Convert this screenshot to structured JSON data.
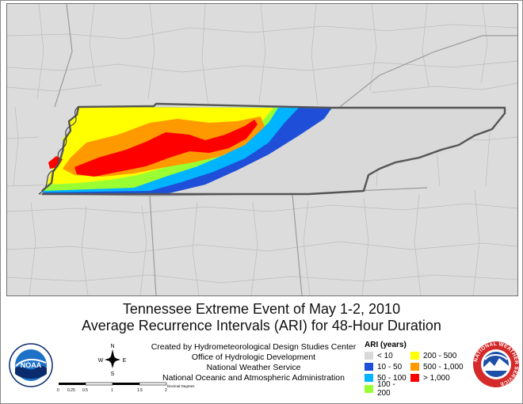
{
  "title": {
    "line1": "Tennessee Extreme Event of May 1-2, 2010",
    "line2": "Average Recurrence Intervals (ARI) for 48-Hour Duration"
  },
  "credits": [
    "Created by Hydrometeorological Design Studies Center",
    "Office of Hydrologic Development",
    "National Weather Service",
    "National Oceanic and Atmospheric Administration"
  ],
  "legend": {
    "title": "ARI (years)",
    "items": [
      {
        "label": "< 10",
        "color": "#d9d9d9"
      },
      {
        "label": "200 - 500",
        "color": "#ffff00"
      },
      {
        "label": "10 - 50",
        "color": "#1f4fd8"
      },
      {
        "label": "500 - 1,000",
        "color": "#ff9900"
      },
      {
        "label": "50 - 100",
        "color": "#00b4ff"
      },
      {
        "label": "> 1,000",
        "color": "#ff0000"
      },
      {
        "label": "100 - 200",
        "color": "#99ff33"
      }
    ]
  },
  "north_arrow": {
    "n": "N",
    "s": "S",
    "e": "E",
    "w": "W"
  },
  "scale_bar": {
    "ticks": [
      "0",
      "0.25",
      "0.5",
      "1",
      "1.5",
      "2"
    ],
    "unit": "Decimal Degrees"
  },
  "logos": {
    "noaa": "NOAA",
    "nws_ring": "NATIONAL WEATHER SERVICE"
  },
  "colors": {
    "map_background": "#dcdcdc",
    "county_lines": "#bdbdbd",
    "state_outline": "#555555"
  }
}
